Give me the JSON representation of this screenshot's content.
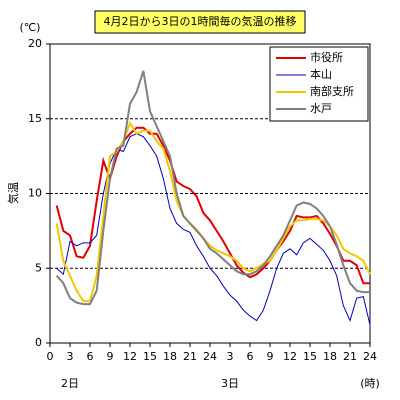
{
  "chart_data": {
    "type": "line",
    "title": "4月2日から3日の1時間毎の気温の推移",
    "y_label": "気温",
    "y_unit": "(℃)",
    "x_unit": "(時)",
    "x_group_labels": [
      "2日",
      "3日"
    ],
    "x": [
      1,
      2,
      3,
      4,
      5,
      6,
      7,
      8,
      9,
      10,
      11,
      12,
      13,
      14,
      15,
      16,
      17,
      18,
      19,
      20,
      21,
      22,
      23,
      24,
      25,
      26,
      27,
      28,
      29,
      30,
      31,
      32,
      33,
      34,
      35,
      36,
      37,
      38,
      39,
      40,
      41,
      42,
      43,
      44,
      45,
      46,
      47,
      48
    ],
    "series": [
      {
        "name": "市役所",
        "color": "#e00000",
        "values": [
          9.2,
          7.5,
          7.2,
          5.8,
          5.7,
          6.5,
          9.5,
          12.2,
          11,
          12.5,
          13.5,
          14,
          14.4,
          14.4,
          14,
          14,
          13.2,
          12.2,
          10.8,
          10.5,
          10.3,
          9.8,
          8.7,
          8.2,
          7.5,
          6.8,
          6,
          5.2,
          4.7,
          4.4,
          4.6,
          5,
          5.5,
          6.2,
          6.8,
          7.5,
          8.5,
          8.4,
          8.4,
          8.5,
          8,
          7.3,
          6.5,
          5.5,
          5.5,
          5.2,
          4,
          4
        ]
      },
      {
        "name": "本山",
        "color": "#0000c0",
        "values": [
          5,
          4.6,
          6.8,
          6.5,
          6.7,
          6.7,
          7.2,
          10,
          12,
          13,
          12.8,
          13.8,
          14,
          13.8,
          13.2,
          12.5,
          11,
          9,
          8,
          7.6,
          7.4,
          6.5,
          5.8,
          5,
          4.5,
          3.8,
          3.2,
          2.8,
          2.2,
          1.8,
          1.5,
          2.2,
          3.5,
          5,
          6,
          6.3,
          5.9,
          6.7,
          7,
          6.6,
          6.2,
          5.5,
          4.5,
          2.5,
          1.5,
          3,
          3.1,
          1.2
        ]
      },
      {
        "name": "南部支所",
        "color": "#f0c800",
        "values": [
          8,
          5.5,
          4.5,
          3.5,
          2.8,
          2.8,
          4.5,
          8.5,
          12.5,
          12.8,
          13.5,
          14.7,
          14,
          14.2,
          14.2,
          13.5,
          13,
          11.5,
          9.5,
          8.5,
          8,
          7.6,
          7,
          6.5,
          6.2,
          6,
          5.8,
          5.5,
          5,
          4.8,
          5,
          5.3,
          5.5,
          6.2,
          7,
          7.8,
          8.2,
          8.2,
          8.3,
          8.3,
          8.2,
          7.8,
          7.2,
          6.3,
          6,
          5.8,
          5.5,
          4.6
        ]
      },
      {
        "name": "水戸",
        "color": "#808080",
        "values": [
          4.5,
          4,
          3,
          2.7,
          2.6,
          2.6,
          3.5,
          7.5,
          11,
          13,
          13.2,
          16,
          16.8,
          18.2,
          15.5,
          14.5,
          13.5,
          12.5,
          10,
          8.5,
          8,
          7.5,
          7,
          6.3,
          6,
          5.6,
          5.2,
          4.8,
          4.6,
          4.6,
          4.8,
          5.2,
          5.8,
          6.5,
          7.2,
          8.2,
          9.2,
          9.4,
          9.3,
          9,
          8.5,
          7.8,
          6.6,
          5.2,
          4,
          3.5,
          3.4,
          3.4
        ]
      }
    ],
    "xlim": [
      0,
      48
    ],
    "xticks": [
      0,
      3,
      6,
      9,
      12,
      15,
      18,
      21,
      24,
      {
        "value": 27,
        "label": "3"
      },
      {
        "value": 30,
        "label": "6"
      },
      {
        "value": 33,
        "label": "9"
      },
      {
        "value": 36,
        "label": "12"
      },
      {
        "value": 39,
        "label": "15"
      },
      {
        "value": 42,
        "label": "18"
      },
      {
        "value": 45,
        "label": "21"
      },
      {
        "value": 48,
        "label": "24"
      }
    ],
    "ylim": [
      0,
      20
    ],
    "yticks": [
      0,
      5,
      10,
      15,
      20
    ],
    "grid": true,
    "legend": "upper right"
  }
}
